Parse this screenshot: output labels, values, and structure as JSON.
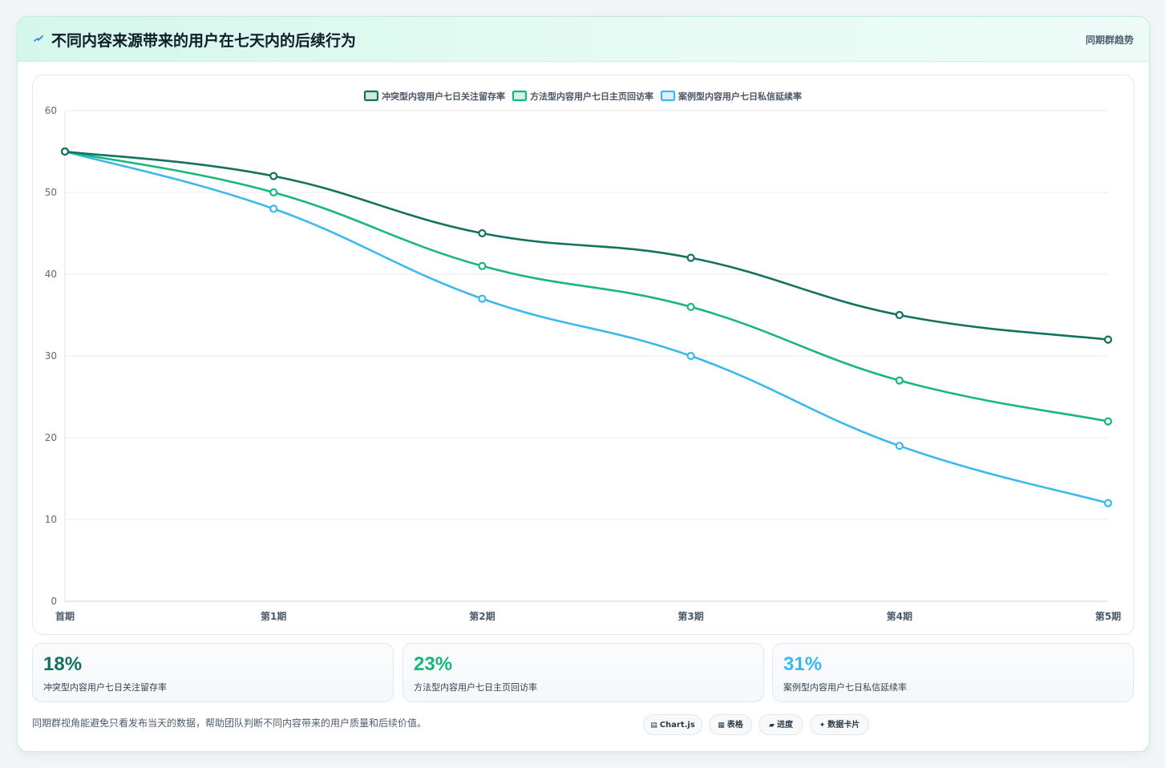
{
  "header": {
    "title": "不同内容来源带来的用户在七天内的后续行为",
    "tag": "同期群趋势"
  },
  "chart_data": {
    "type": "line",
    "categories": [
      "首期",
      "第1期",
      "第2期",
      "第3期",
      "第4期",
      "第5期"
    ],
    "ylim": [
      0,
      60
    ],
    "yticks": [
      0,
      10,
      20,
      30,
      40,
      50,
      60
    ],
    "grid": true,
    "legend_position": "top-center",
    "smooth": true,
    "series": [
      {
        "name": "冲突型内容用户七日关注留存率",
        "color": "#12715f",
        "values": [
          55,
          52,
          45,
          42,
          35,
          32
        ]
      },
      {
        "name": "方法型内容用户七日主页回访率",
        "color": "#18b77d",
        "values": [
          55,
          50,
          41,
          36,
          27,
          22
        ]
      },
      {
        "name": "案例型内容用户七日私信延续率",
        "color": "#3db8ec",
        "values": [
          55,
          48,
          37,
          30,
          19,
          12
        ]
      }
    ]
  },
  "stats": [
    {
      "value": "18%",
      "label": "冲突型内容用户七日关注留存率",
      "color": "#12715f"
    },
    {
      "value": "23%",
      "label": "方法型内容用户七日主页回访率",
      "color": "#18b77d"
    },
    {
      "value": "31%",
      "label": "案例型内容用户七日私信延续率",
      "color": "#3db8ec"
    }
  ],
  "footnote": "同期群视角能避免只看发布当天的数据，帮助团队判断不同内容带来的用户质量和后续价值。",
  "chips": [
    {
      "icon": "▤",
      "label": "Chart.js",
      "icon_name": "chart-icon"
    },
    {
      "icon": "▦",
      "label": "表格",
      "icon_name": "table-icon"
    },
    {
      "icon": "▰",
      "label": "进度",
      "icon_name": "progress-icon"
    },
    {
      "icon": "✦",
      "label": "数据卡片",
      "icon_name": "sparkle-icon"
    }
  ]
}
